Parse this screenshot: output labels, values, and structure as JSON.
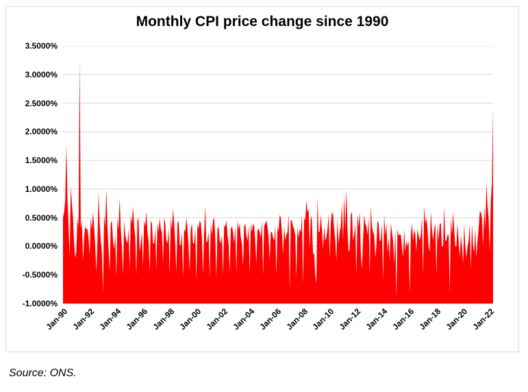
{
  "chart": {
    "title": "Monthly CPI price change since 1990"
  },
  "source_note": "Source: ONS.",
  "colors": {
    "series": "#FF0000",
    "gridline": "#D9D9D9",
    "border": "#D9D9D9",
    "text": "#000000",
    "background": "#FFFFFF"
  },
  "chart_data": {
    "type": "area",
    "title": "Monthly CPI price change since 1990",
    "xlabel": "",
    "ylabel": "",
    "x_unit": "month",
    "x_start_label": "Jan-90",
    "months_per_tick": 24,
    "x_tick_labels": [
      "Jan-90",
      "Jan-92",
      "Jan-94",
      "Jan-96",
      "Jan-98",
      "Jan-00",
      "Jan-02",
      "Jan-04",
      "Jan-06",
      "Jan-08",
      "Jan-10",
      "Jan-12",
      "Jan-14",
      "Jan-16",
      "Jan-18",
      "Jan-20",
      "Jan-22"
    ],
    "y_ticks": [
      {
        "label": "3.5000%",
        "value": 3.5
      },
      {
        "label": "3.0000%",
        "value": 3.0
      },
      {
        "label": "2.5000%",
        "value": 2.5
      },
      {
        "label": "2.0000%",
        "value": 2.0
      },
      {
        "label": "1.5000%",
        "value": 1.5
      },
      {
        "label": "1.0000%",
        "value": 1.0
      },
      {
        "label": "0.5000%",
        "value": 0.5
      },
      {
        "label": "0.0000%",
        "value": 0.0
      },
      {
        "label": "-0.5000%",
        "value": -0.5
      },
      {
        "label": "-1.0000%",
        "value": -1.0
      }
    ],
    "ylim": [
      -1.0,
      3.5
    ],
    "grid": true,
    "legend": false,
    "fill_baseline": -1.0,
    "values": [
      0.5,
      0.6,
      0.8,
      1.78,
      0.85,
      0.35,
      -0.2,
      1.05,
      0.75,
      0.5,
      0.05,
      -0.2,
      -0.1,
      0.5,
      0.35,
      3.27,
      0.3,
      0.45,
      -0.25,
      0.15,
      0.35,
      0.3,
      0.3,
      0.15,
      -0.15,
      0.5,
      0.3,
      0.6,
      0.35,
      0,
      -0.45,
      0.1,
      0.95,
      0.4,
      0.1,
      -0.1,
      -0.8,
      0.55,
      0.35,
      1.0,
      0.35,
      -0.05,
      -0.45,
      0.4,
      0.45,
      0.1,
      -0.05,
      0.2,
      -0.55,
      0.5,
      0.3,
      0.85,
      0.3,
      0,
      -0.5,
      0.45,
      0.2,
      0.1,
      0.05,
      0.3,
      -0.4,
      0.55,
      0.4,
      0.7,
      0.35,
      0.15,
      -0.5,
      0.5,
      0.45,
      -0.1,
      0.05,
      0.25,
      -0.35,
      0.45,
      0.35,
      0.6,
      0.25,
      0.1,
      -0.45,
      0.45,
      0.4,
      0.05,
      0.05,
      0.3,
      -0.4,
      0.4,
      0.25,
      0.5,
      0.3,
      0.25,
      -0.3,
      0.5,
      0.4,
      0.1,
      0.05,
      0.3,
      -0.5,
      0.5,
      0.3,
      0.65,
      0.4,
      0.05,
      -0.45,
      0.4,
      0.45,
      0.05,
      0,
      0.25,
      -0.55,
      0.3,
      0.25,
      0.5,
      0.3,
      0,
      -0.45,
      0.3,
      0.4,
      0.05,
      0.05,
      0.3,
      -0.6,
      0.4,
      0.3,
      0.45,
      0.4,
      0.15,
      -0.5,
      0.25,
      0.7,
      0.05,
      0.1,
      0.25,
      -0.55,
      0.4,
      0.2,
      0.45,
      0.5,
      0.15,
      -0.55,
      0.3,
      0.35,
      0.1,
      0.05,
      0.2,
      -0.5,
      0.35,
      0.35,
      0.45,
      0.2,
      0.05,
      -0.45,
      0.3,
      0.35,
      0.25,
      0.05,
      0.35,
      -0.45,
      0.45,
      0.3,
      0.4,
      0.15,
      0.05,
      -0.35,
      0.35,
      0.4,
      0.2,
      0.1,
      0.35,
      -0.5,
      0.4,
      0.25,
      0.4,
      0.35,
      0.1,
      -0.3,
      0.3,
      0.3,
      0.25,
      0.15,
      0.45,
      -0.5,
      0.35,
      0.4,
      0.45,
      0.35,
      0.15,
      -0.25,
      0.25,
      0.25,
      0.15,
      0.1,
      0.35,
      -0.5,
      0.35,
      0.25,
      0.55,
      0.5,
      0.25,
      -0.15,
      0.35,
      0.1,
      0.2,
      0.25,
      0.55,
      -0.75,
      0.45,
      0.45,
      0.35,
      0.3,
      0.2,
      -0.55,
      0.35,
      0.15,
      0.3,
      0.25,
      0.55,
      -0.65,
      0.5,
      0.45,
      0.8,
      0.6,
      0.65,
      -0.05,
      0.55,
      0.45,
      -0.15,
      -0.1,
      -0.5,
      -0.65,
      0.85,
      0.25,
      0.25,
      0.55,
      0.3,
      -0.05,
      0.35,
      0.1,
      0.15,
      0.3,
      0.55,
      -0.2,
      0.4,
      0.6,
      0.55,
      0.3,
      0.1,
      -0.25,
      0.5,
      0.05,
      0.25,
      0.35,
      0.75,
      0.1,
      0.9,
      0.3,
      1.0,
      0.3,
      -0.1,
      -0.05,
      0.55,
      0.6,
      0.1,
      0.2,
      0.4,
      -0.5,
      0.55,
      0.35,
      0.6,
      -0.1,
      -0.4,
      0.1,
      0.55,
      0.4,
      0.35,
      0.2,
      0.5,
      -0.5,
      0.7,
      0.35,
      0.25,
      0.2,
      -0.2,
      0,
      0.45,
      0.4,
      0.1,
      0.1,
      0.4,
      -0.6,
      0.55,
      0.2,
      0.4,
      -0.1,
      0.15,
      -0.25,
      0.4,
      0.25,
      0.1,
      -0.3,
      0.3,
      -0.9,
      0.3,
      0.2,
      0.2,
      0.2,
      0,
      -0.2,
      0.3,
      -0.1,
      0.1,
      0,
      0.1,
      -0.8,
      0.2,
      0.4,
      0.1,
      0.3,
      0.2,
      -0.1,
      0.3,
      0.2,
      0.1,
      0.2,
      0.5,
      -0.5,
      0.7,
      0.4,
      0.5,
      0.3,
      0,
      -0.1,
      0.6,
      0.3,
      0.1,
      0.3,
      0.4,
      -0.5,
      0.4,
      0.1,
      0.4,
      0.4,
      0,
      0,
      0.7,
      0.1,
      0.1,
      0.2,
      0.2,
      -0.8,
      0.5,
      0.2,
      0.6,
      0.3,
      0,
      0,
      0.4,
      0.1,
      -0.2,
      0.2,
      0,
      -0.3,
      0.4,
      0,
      -0.2,
      0,
      0.1,
      0.4,
      -0.4,
      0.4,
      0,
      -0.1,
      0.3,
      -0.2,
      0.1,
      0.3,
      0.6,
      0.6,
      0.5,
      0,
      0.7,
      0.3,
      1.1,
      0.7,
      0.5,
      -0.1,
      0.8,
      1.1,
      2.43
    ]
  }
}
